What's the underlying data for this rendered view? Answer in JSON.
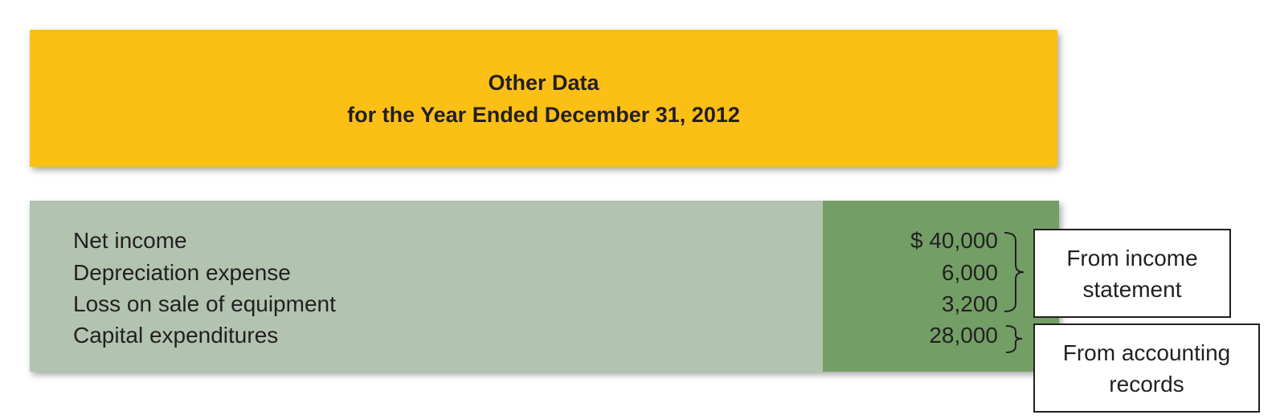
{
  "header": {
    "title": "Other Data",
    "subtitle": "for the Year Ended December 31, 2012",
    "background_color": "#fcbf16"
  },
  "rows": [
    {
      "label": "Net income",
      "value": "$ 40,000"
    },
    {
      "label": "Depreciation expense",
      "value": "6,000"
    },
    {
      "label": "Loss on sale of equipment",
      "value": "3,200"
    },
    {
      "label": "Capital expenditures",
      "value": "28,000"
    }
  ],
  "colors": {
    "label_column": "#b2c4b1",
    "value_column": "#739f67"
  },
  "notes": {
    "income_statement": {
      "line1": "From income",
      "line2": "statement"
    },
    "accounting_records": {
      "line1": "From accounting",
      "line2": "records"
    }
  }
}
